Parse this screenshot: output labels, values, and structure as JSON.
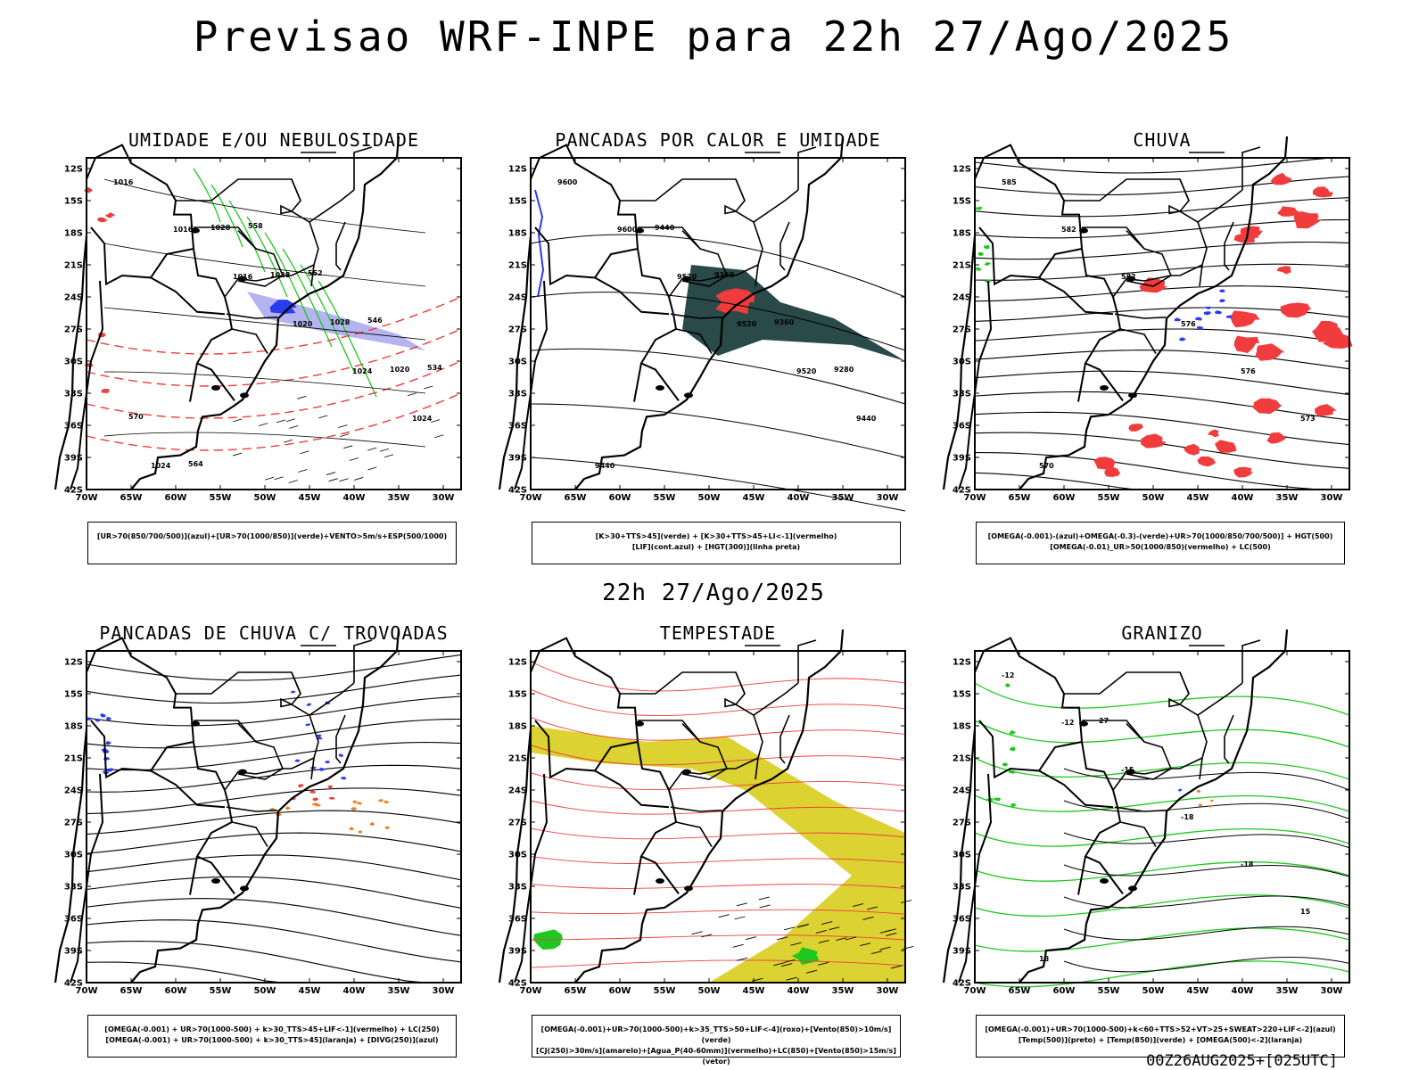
{
  "header": {
    "title": "Previsao WRF-INPE  para 22h 27/Ago/2025"
  },
  "middle_date": "22h 27/Ago/2025",
  "footer": "00Z26AUG2025+[025UTC]",
  "axes": {
    "lat_labels": [
      "12S",
      "15S",
      "18S",
      "21S",
      "24S",
      "27S",
      "30S",
      "33S",
      "36S",
      "39S",
      "42S"
    ],
    "lon_labels": [
      "70W",
      "65W",
      "60W",
      "55W",
      "50W",
      "45W",
      "40W",
      "35W",
      "30W"
    ]
  },
  "panels": [
    {
      "id": "umidade",
      "title": "UMIDADE E/OU NEBULOSIDADE",
      "legend": [
        "[UR>70(850/700/500)](azul)+[UR>70(1000/850)](verde)+VENTO>5m/s+ESP(500/1000)"
      ],
      "contour_labels": [
        "1016",
        "1016",
        "1016",
        "1020",
        "1024",
        "1024",
        "1024",
        "1028",
        "1028",
        "1028",
        "1020",
        "570",
        "564",
        "558",
        "552",
        "546",
        "534"
      ]
    },
    {
      "id": "pancadas_calor",
      "title": "PANCADAS POR CALOR E UMIDADE",
      "legend": [
        "[K>30+TTS>45](verde) + [K>30+TTS>45+LI<-1](vermelho)",
        "[LIF](cont.azul) + [HGT(300)](linha preta)"
      ],
      "contour_labels": [
        "9600",
        "9600",
        "9520",
        "9520",
        "9520",
        "9440",
        "9440",
        "9440",
        "9360",
        "9360",
        "9280"
      ]
    },
    {
      "id": "chuva",
      "title": "CHUVA",
      "legend": [
        "[OMEGA(-0.001)-(azul)+OMEGA(-0.3)-(verde)+UR>70(1000/850/700/500)] + HGT(500)",
        "[OMEGA(-0.01)_UR>50(1000/850)(vermelho) + LC(500)"
      ],
      "contour_labels": [
        "585",
        "582",
        "582",
        "576",
        "576",
        "573",
        "570"
      ]
    },
    {
      "id": "pancadas_trovoadas",
      "title": "PANCADAS DE CHUVA C/ TROVOADAS",
      "legend": [
        "[OMEGA(-0.001) + UR>70(1000-500) + k>30_TTS>45+LIF<-1](vermelho) + LC(250)",
        "[OMEGA(-0.001) + UR>70(1000-500) + k>30_TTS>45](laranja) + [DIVG(250)](azul)"
      ],
      "contour_labels": []
    },
    {
      "id": "tempestade",
      "title": "TEMPESTADE",
      "legend": [
        "[OMEGA(-0.001)+UR>70(1000-500)+k>35_TTS>50+LIF<-4](roxo)+[Vento(850)>10m/s](verde)",
        "[CJ(250)>30m/s](amarelo)+[Agua_P(40-60mm)](vermelho)+LC(850)+[Vento(850)>15m/s](vetor)"
      ],
      "contour_labels": []
    },
    {
      "id": "granizo",
      "title": "GRANIZO",
      "legend": [
        "[OMEGA(-0.001)+UR>70(1000-500)+k<60+TTS>52+VT>25+SWEAT>220+LIF<-2](azul)",
        "[Temp(500)](preto) + [Temp(850)](verde) + [OMEGA(500)<-2](laranja)"
      ],
      "contour_labels": [
        "-12",
        "-12",
        "-15",
        "-18",
        "-18",
        "15",
        "18",
        "27"
      ]
    }
  ],
  "colors": {
    "blue": "#2a3cf0",
    "green": "#1ec81e",
    "red": "#f03c3c",
    "orange": "#f08020",
    "yellow": "#dcd232",
    "darkteal": "#2a4a4a",
    "lightblue": "#b4b4f0"
  }
}
